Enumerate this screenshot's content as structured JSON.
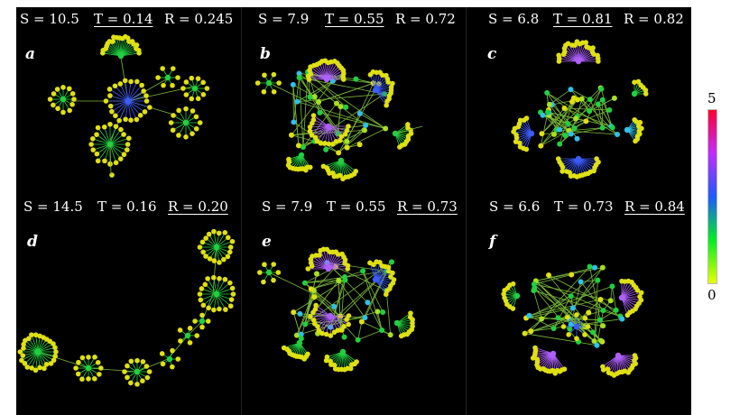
{
  "panels": [
    {
      "id": "a",
      "label": "a",
      "S": "S = 10.5",
      "T": "T = 0.14",
      "R": "R = 0.245",
      "underline": "T"
    },
    {
      "id": "b",
      "label": "b",
      "S": "S = 7.9",
      "T": "T = 0.55",
      "R": "R = 0.72",
      "underline": "T"
    },
    {
      "id": "c",
      "label": "c",
      "S": "S = 6.8",
      "T": "T = 0.81",
      "R": "R = 0.82",
      "underline": "T"
    },
    {
      "id": "d",
      "label": "d",
      "S": "S = 14.5",
      "T": "T = 0.16",
      "R": "R = 0.20",
      "underline": "R"
    },
    {
      "id": "e",
      "label": "e",
      "S": "S = 7.9",
      "T": "T = 0.55",
      "R": "R = 0.73",
      "underline": "R"
    },
    {
      "id": "f",
      "label": "f",
      "S": "S = 6.6",
      "T": "T = 0.73",
      "R": "R = 0.84",
      "underline": "R"
    }
  ],
  "colorbar": {
    "max_label": "5",
    "min_label": "0",
    "colors": [
      "#e8ff00",
      "#00ee22",
      "#1e5aff",
      "#c02cff",
      "#ff0030"
    ]
  },
  "colors": {
    "background": "#000000",
    "leaf_node": "#e0e010",
    "edge": "#7ab838",
    "hub_blue": "#3c5cff",
    "hub_violet": "#b060ff",
    "hub_cyan": "#30c0e8",
    "hub_green": "#20d040"
  }
}
